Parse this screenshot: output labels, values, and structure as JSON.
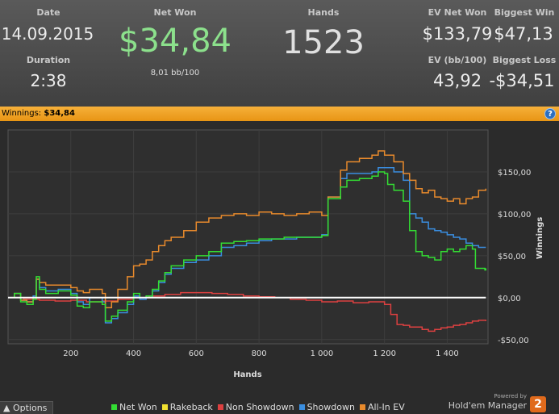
{
  "summary": {
    "date_label": "Date",
    "date_value": "14.09.2015",
    "duration_label": "Duration",
    "duration_value": "2:38",
    "net_won_label": "Net Won",
    "net_won_value": "$34,84",
    "bb_per_100": "8,01 bb/100",
    "hands_label": "Hands",
    "hands_value": "1523",
    "ev_net_won_label": "EV Net Won",
    "ev_net_won_value": "$133,79",
    "ev_bb_label": "EV (bb/100)",
    "ev_bb_value": "43,92",
    "biggest_win_label": "Biggest Win",
    "biggest_win_value": "$47,13",
    "biggest_loss_label": "Biggest Loss",
    "biggest_loss_value": "-$34,51"
  },
  "winnings_bar": {
    "label": "Winnings:",
    "value": "$34,84",
    "help_icon": "help-icon"
  },
  "footer": {
    "options_label": "Options",
    "powered_by": "Powered by",
    "brand": "Hold'em Manager",
    "brand_logo": "2"
  },
  "colors": {
    "net_won": "#33dd33",
    "rakeback": "#f0e030",
    "non_showdown": "#dd4040",
    "showdown": "#3a8ee0",
    "all_in_ev": "#e88a2c",
    "net_won_text": "#8ce08c"
  },
  "chart_data": {
    "type": "line",
    "xlabel": "Hands",
    "ylabel": "Winnings",
    "xlim": [
      0,
      1530
    ],
    "ylim": [
      -55,
      200
    ],
    "x_ticks": [
      200,
      400,
      600,
      800,
      1000,
      1200,
      1400
    ],
    "x_tick_labels": [
      "200",
      "400",
      "600",
      "800",
      "1 000",
      "1 200",
      "1 400"
    ],
    "y_ticks": [
      -50,
      0,
      50,
      100,
      150
    ],
    "y_tick_labels": [
      "-$50,00",
      "$0,00",
      "$50,00",
      "$100,00",
      "$150,00"
    ],
    "grid": true,
    "legend_position": "bottom",
    "series": [
      {
        "name": "Net Won",
        "key": "net_won",
        "points": [
          [
            0,
            0
          ],
          [
            20,
            5
          ],
          [
            40,
            -5
          ],
          [
            60,
            -8
          ],
          [
            80,
            -2
          ],
          [
            90,
            25
          ],
          [
            100,
            10
          ],
          [
            120,
            5
          ],
          [
            160,
            8
          ],
          [
            200,
            3
          ],
          [
            220,
            -10
          ],
          [
            240,
            -12
          ],
          [
            260,
            -5
          ],
          [
            300,
            -8
          ],
          [
            310,
            -28
          ],
          [
            330,
            -22
          ],
          [
            350,
            -15
          ],
          [
            380,
            -5
          ],
          [
            400,
            5
          ],
          [
            420,
            0
          ],
          [
            440,
            2
          ],
          [
            460,
            10
          ],
          [
            480,
            20
          ],
          [
            500,
            30
          ],
          [
            520,
            38
          ],
          [
            560,
            45
          ],
          [
            600,
            50
          ],
          [
            640,
            55
          ],
          [
            680,
            65
          ],
          [
            720,
            67
          ],
          [
            760,
            68
          ],
          [
            800,
            70
          ],
          [
            840,
            70
          ],
          [
            880,
            72
          ],
          [
            920,
            72
          ],
          [
            960,
            72
          ],
          [
            1000,
            74
          ],
          [
            1020,
            118
          ],
          [
            1060,
            132
          ],
          [
            1080,
            140
          ],
          [
            1120,
            142
          ],
          [
            1160,
            145
          ],
          [
            1180,
            150
          ],
          [
            1200,
            148
          ],
          [
            1210,
            135
          ],
          [
            1230,
            128
          ],
          [
            1260,
            115
          ],
          [
            1280,
            80
          ],
          [
            1300,
            55
          ],
          [
            1320,
            50
          ],
          [
            1340,
            48
          ],
          [
            1360,
            45
          ],
          [
            1380,
            55
          ],
          [
            1400,
            58
          ],
          [
            1420,
            55
          ],
          [
            1440,
            58
          ],
          [
            1460,
            62
          ],
          [
            1480,
            58
          ],
          [
            1490,
            35
          ],
          [
            1520,
            33
          ],
          [
            1523,
            35
          ]
        ]
      },
      {
        "name": "Rakeback",
        "key": "rakeback",
        "points": [
          [
            0,
            0
          ],
          [
            1523,
            0
          ]
        ]
      },
      {
        "name": "Non Showdown",
        "key": "non_showdown",
        "points": [
          [
            0,
            0
          ],
          [
            50,
            -2
          ],
          [
            100,
            -3
          ],
          [
            150,
            -4
          ],
          [
            200,
            -3
          ],
          [
            250,
            -5
          ],
          [
            300,
            -4
          ],
          [
            350,
            -2
          ],
          [
            400,
            0
          ],
          [
            450,
            2
          ],
          [
            500,
            4
          ],
          [
            550,
            6
          ],
          [
            600,
            6
          ],
          [
            650,
            5
          ],
          [
            700,
            4
          ],
          [
            750,
            2
          ],
          [
            800,
            1
          ],
          [
            850,
            0
          ],
          [
            900,
            -2
          ],
          [
            950,
            -3
          ],
          [
            1000,
            -5
          ],
          [
            1050,
            -4
          ],
          [
            1100,
            -6
          ],
          [
            1150,
            -5
          ],
          [
            1200,
            -8
          ],
          [
            1220,
            -20
          ],
          [
            1240,
            -32
          ],
          [
            1260,
            -33
          ],
          [
            1280,
            -35
          ],
          [
            1300,
            -35
          ],
          [
            1320,
            -38
          ],
          [
            1340,
            -40
          ],
          [
            1360,
            -38
          ],
          [
            1380,
            -36
          ],
          [
            1400,
            -35
          ],
          [
            1420,
            -33
          ],
          [
            1440,
            -32
          ],
          [
            1460,
            -30
          ],
          [
            1480,
            -28
          ],
          [
            1500,
            -27
          ],
          [
            1523,
            -28
          ]
        ]
      },
      {
        "name": "Showdown",
        "key": "showdown",
        "points": [
          [
            0,
            0
          ],
          [
            20,
            5
          ],
          [
            40,
            -3
          ],
          [
            60,
            -5
          ],
          [
            80,
            2
          ],
          [
            90,
            22
          ],
          [
            100,
            12
          ],
          [
            120,
            8
          ],
          [
            160,
            10
          ],
          [
            200,
            5
          ],
          [
            220,
            -5
          ],
          [
            240,
            -8
          ],
          [
            260,
            0
          ],
          [
            300,
            -5
          ],
          [
            310,
            -30
          ],
          [
            330,
            -25
          ],
          [
            350,
            -18
          ],
          [
            380,
            -8
          ],
          [
            400,
            2
          ],
          [
            420,
            -2
          ],
          [
            440,
            0
          ],
          [
            460,
            8
          ],
          [
            480,
            18
          ],
          [
            500,
            28
          ],
          [
            520,
            35
          ],
          [
            560,
            42
          ],
          [
            600,
            45
          ],
          [
            640,
            50
          ],
          [
            680,
            60
          ],
          [
            720,
            62
          ],
          [
            760,
            65
          ],
          [
            800,
            68
          ],
          [
            840,
            70
          ],
          [
            880,
            70
          ],
          [
            920,
            72
          ],
          [
            960,
            72
          ],
          [
            1000,
            75
          ],
          [
            1020,
            120
          ],
          [
            1060,
            142
          ],
          [
            1080,
            148
          ],
          [
            1120,
            148
          ],
          [
            1160,
            150
          ],
          [
            1180,
            155
          ],
          [
            1200,
            155
          ],
          [
            1230,
            150
          ],
          [
            1260,
            140
          ],
          [
            1280,
            100
          ],
          [
            1300,
            95
          ],
          [
            1320,
            90
          ],
          [
            1340,
            82
          ],
          [
            1360,
            80
          ],
          [
            1380,
            78
          ],
          [
            1400,
            75
          ],
          [
            1420,
            72
          ],
          [
            1440,
            70
          ],
          [
            1460,
            65
          ],
          [
            1480,
            62
          ],
          [
            1500,
            60
          ],
          [
            1523,
            60
          ]
        ]
      },
      {
        "name": "All-In EV",
        "key": "all_in_ev",
        "points": [
          [
            0,
            0
          ],
          [
            20,
            5
          ],
          [
            40,
            -3
          ],
          [
            60,
            -5
          ],
          [
            80,
            0
          ],
          [
            90,
            22
          ],
          [
            100,
            18
          ],
          [
            120,
            15
          ],
          [
            160,
            15
          ],
          [
            200,
            12
          ],
          [
            220,
            8
          ],
          [
            240,
            6
          ],
          [
            260,
            10
          ],
          [
            300,
            5
          ],
          [
            310,
            -12
          ],
          [
            330,
            -5
          ],
          [
            350,
            10
          ],
          [
            380,
            25
          ],
          [
            400,
            38
          ],
          [
            420,
            40
          ],
          [
            440,
            45
          ],
          [
            460,
            55
          ],
          [
            480,
            62
          ],
          [
            500,
            68
          ],
          [
            520,
            72
          ],
          [
            560,
            80
          ],
          [
            600,
            90
          ],
          [
            640,
            95
          ],
          [
            680,
            98
          ],
          [
            720,
            100
          ],
          [
            760,
            98
          ],
          [
            800,
            102
          ],
          [
            840,
            100
          ],
          [
            880,
            98
          ],
          [
            920,
            100
          ],
          [
            960,
            102
          ],
          [
            1000,
            98
          ],
          [
            1020,
            120
          ],
          [
            1060,
            152
          ],
          [
            1080,
            162
          ],
          [
            1120,
            166
          ],
          [
            1160,
            170
          ],
          [
            1180,
            175
          ],
          [
            1200,
            170
          ],
          [
            1230,
            162
          ],
          [
            1260,
            148
          ],
          [
            1280,
            140
          ],
          [
            1300,
            130
          ],
          [
            1320,
            125
          ],
          [
            1340,
            128
          ],
          [
            1360,
            120
          ],
          [
            1380,
            118
          ],
          [
            1400,
            115
          ],
          [
            1420,
            118
          ],
          [
            1440,
            112
          ],
          [
            1460,
            118
          ],
          [
            1480,
            120
          ],
          [
            1500,
            128
          ],
          [
            1523,
            130
          ]
        ]
      }
    ]
  }
}
